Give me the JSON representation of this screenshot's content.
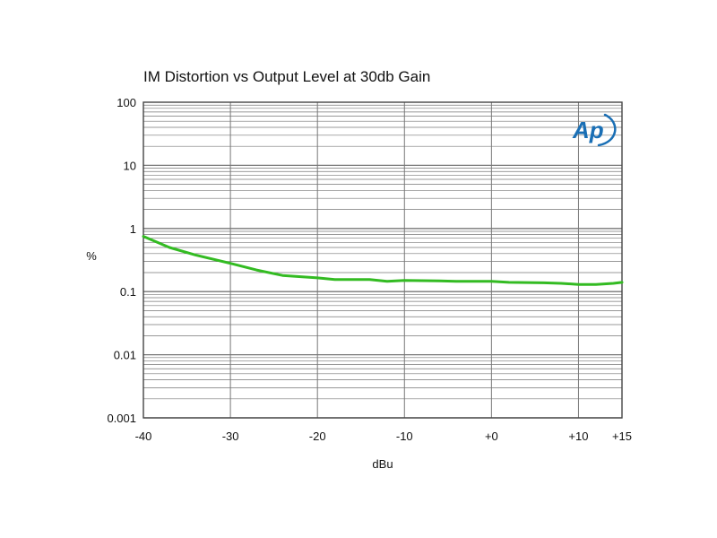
{
  "chart_data": {
    "type": "line",
    "title": "IM Distortion vs Output Level at 30db Gain",
    "xlabel": "dBu",
    "ylabel": "%",
    "y_scale": "log",
    "xlim": [
      -40,
      15
    ],
    "ylim": [
      0.001,
      100
    ],
    "x_ticks": [
      {
        "value": -40,
        "label": "-40"
      },
      {
        "value": -30,
        "label": "-30"
      },
      {
        "value": -20,
        "label": "-20"
      },
      {
        "value": -10,
        "label": "-10"
      },
      {
        "value": 0,
        "label": "+0"
      },
      {
        "value": 10,
        "label": "+10"
      },
      {
        "value": 15,
        "label": "+15"
      }
    ],
    "y_ticks": [
      {
        "value": 100,
        "label": "100"
      },
      {
        "value": 10,
        "label": "10"
      },
      {
        "value": 1,
        "label": "1"
      },
      {
        "value": 0.1,
        "label": "0.1"
      },
      {
        "value": 0.01,
        "label": "0.01"
      },
      {
        "value": 0.001,
        "label": "0.001"
      }
    ],
    "grid": true,
    "series": [
      {
        "color": "#33bb22",
        "x": [
          -40,
          -37,
          -34,
          -30,
          -27,
          -24,
          -20,
          -18,
          -14,
          -12,
          -10,
          -6,
          -4,
          0,
          2,
          6,
          8,
          10,
          12,
          14,
          15
        ],
        "y": [
          0.75,
          0.5,
          0.38,
          0.28,
          0.22,
          0.18,
          0.165,
          0.155,
          0.155,
          0.145,
          0.15,
          0.148,
          0.145,
          0.145,
          0.14,
          0.138,
          0.135,
          0.13,
          0.13,
          0.135,
          0.14
        ]
      }
    ]
  },
  "logo": {
    "text": "Ap",
    "color": "#1a6fb5"
  }
}
